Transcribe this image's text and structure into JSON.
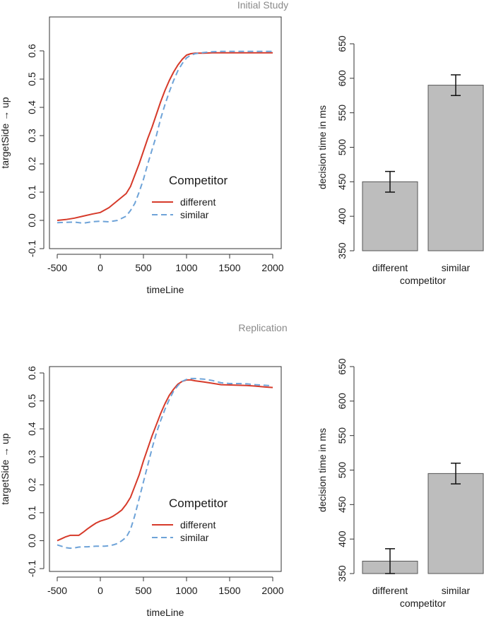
{
  "panels": [
    {
      "title": "Initial Study"
    },
    {
      "title": "Replication"
    }
  ],
  "line_labels": {
    "xlabel": "timeLine",
    "ylabel": "targetSide → up"
  },
  "legend": {
    "title": "Competitor",
    "items": [
      "different",
      "similar"
    ]
  },
  "bar_labels": {
    "xlabel": "competitor",
    "ylabel": "decision time in ms"
  },
  "colors": {
    "different": "#d63a2a",
    "similar": "#6ea3d8",
    "bar": "#bdbdbd"
  },
  "chart_data": [
    {
      "type": "line",
      "panel": "Initial Study",
      "xlabel": "timeLine",
      "ylabel": "targetSide → up",
      "xlim": [
        -500,
        2000
      ],
      "ylim": [
        -0.1,
        0.6
      ],
      "xticks": [
        -500,
        0,
        500,
        1000,
        1500,
        2000
      ],
      "yticks": [
        -0.1,
        0.0,
        0.1,
        0.2,
        0.3,
        0.4,
        0.5,
        0.6
      ],
      "ytick_labels": [
        "-0.1",
        "0.0",
        "0.1",
        "0.2",
        "0.3",
        "0.4",
        "0.5",
        "0.6"
      ],
      "legend_position": "center-right",
      "series": [
        {
          "name": "different",
          "style": "solid",
          "x": [
            -500,
            -400,
            -300,
            -200,
            -100,
            0,
            100,
            200,
            300,
            350,
            400,
            450,
            500,
            550,
            600,
            650,
            700,
            750,
            800,
            850,
            900,
            950,
            1000,
            1050,
            1100,
            1200,
            1300,
            1400,
            1500,
            1600,
            1700,
            1800,
            1900,
            2000
          ],
          "y": [
            0.0,
            0.003,
            0.008,
            0.015,
            0.022,
            0.028,
            0.045,
            0.07,
            0.095,
            0.12,
            0.16,
            0.2,
            0.245,
            0.29,
            0.33,
            0.375,
            0.42,
            0.46,
            0.495,
            0.525,
            0.55,
            0.57,
            0.585,
            0.59,
            0.592,
            0.592,
            0.593,
            0.593,
            0.593,
            0.593,
            0.593,
            0.593,
            0.593,
            0.593
          ]
        },
        {
          "name": "similar",
          "style": "dashed",
          "x": [
            -500,
            -400,
            -300,
            -200,
            -100,
            0,
            100,
            200,
            300,
            350,
            400,
            450,
            500,
            550,
            600,
            650,
            700,
            750,
            800,
            850,
            900,
            950,
            1000,
            1050,
            1100,
            1200,
            1300,
            1400,
            1500,
            1600,
            1700,
            1800,
            1900,
            2000
          ],
          "y": [
            -0.008,
            -0.007,
            -0.006,
            -0.01,
            -0.005,
            -0.003,
            -0.005,
            0.0,
            0.015,
            0.035,
            0.06,
            0.1,
            0.145,
            0.2,
            0.25,
            0.3,
            0.36,
            0.41,
            0.455,
            0.495,
            0.53,
            0.555,
            0.575,
            0.585,
            0.59,
            0.594,
            0.597,
            0.598,
            0.598,
            0.598,
            0.598,
            0.598,
            0.598,
            0.598
          ]
        }
      ]
    },
    {
      "type": "bar",
      "panel": "Initial Study",
      "xlabel": "competitor",
      "ylabel": "decision time in ms",
      "categories": [
        "different",
        "similar"
      ],
      "values": [
        450,
        590
      ],
      "errors": [
        15,
        15
      ],
      "ylim": [
        350,
        650
      ],
      "yticks": [
        350,
        400,
        450,
        500,
        550,
        600,
        650
      ]
    },
    {
      "type": "line",
      "panel": "Replication",
      "xlabel": "timeLine",
      "ylabel": "targetSide → up",
      "xlim": [
        -500,
        2000
      ],
      "ylim": [
        -0.1,
        0.6
      ],
      "xticks": [
        -500,
        0,
        500,
        1000,
        1500,
        2000
      ],
      "yticks": [
        -0.1,
        0.0,
        0.1,
        0.2,
        0.3,
        0.4,
        0.5,
        0.6
      ],
      "ytick_labels": [
        "-0.1",
        "0.0",
        "0.1",
        "0.2",
        "0.3",
        "0.4",
        "0.5",
        "0.6"
      ],
      "legend_position": "center-right",
      "series": [
        {
          "name": "different",
          "style": "solid",
          "x": [
            -500,
            -450,
            -400,
            -350,
            -300,
            -250,
            -200,
            -150,
            -100,
            -50,
            0,
            50,
            100,
            150,
            200,
            250,
            300,
            350,
            400,
            450,
            500,
            550,
            600,
            650,
            700,
            750,
            800,
            850,
            900,
            950,
            1000,
            1050,
            1100,
            1200,
            1300,
            1400,
            1500,
            1600,
            1700,
            1800,
            1900,
            2000
          ],
          "y": [
            0.0,
            0.007,
            0.014,
            0.019,
            0.019,
            0.019,
            0.03,
            0.042,
            0.053,
            0.063,
            0.07,
            0.075,
            0.08,
            0.088,
            0.098,
            0.11,
            0.13,
            0.155,
            0.195,
            0.235,
            0.285,
            0.33,
            0.375,
            0.415,
            0.455,
            0.49,
            0.52,
            0.542,
            0.56,
            0.57,
            0.575,
            0.575,
            0.572,
            0.568,
            0.563,
            0.558,
            0.557,
            0.556,
            0.555,
            0.553,
            0.55,
            0.548
          ]
        },
        {
          "name": "similar",
          "style": "dashed",
          "x": [
            -500,
            -450,
            -400,
            -350,
            -300,
            -250,
            -200,
            -150,
            -100,
            -50,
            0,
            50,
            100,
            150,
            200,
            250,
            300,
            350,
            400,
            450,
            500,
            550,
            600,
            650,
            700,
            750,
            800,
            850,
            900,
            950,
            1000,
            1050,
            1100,
            1200,
            1300,
            1400,
            1500,
            1600,
            1700,
            1800,
            1900,
            2000
          ],
          "y": [
            -0.015,
            -0.02,
            -0.025,
            -0.027,
            -0.026,
            -0.023,
            -0.022,
            -0.022,
            -0.021,
            -0.02,
            -0.02,
            -0.02,
            -0.018,
            -0.015,
            -0.01,
            0.0,
            0.012,
            0.04,
            0.09,
            0.15,
            0.21,
            0.27,
            0.33,
            0.385,
            0.43,
            0.47,
            0.505,
            0.535,
            0.555,
            0.57,
            0.577,
            0.58,
            0.58,
            0.578,
            0.573,
            0.565,
            0.562,
            0.562,
            0.561,
            0.558,
            0.556,
            0.554
          ]
        }
      ]
    },
    {
      "type": "bar",
      "panel": "Replication",
      "xlabel": "competitor",
      "ylabel": "decision time in ms",
      "categories": [
        "different",
        "similar"
      ],
      "values": [
        368,
        495
      ],
      "errors": [
        18,
        15
      ],
      "ylim": [
        350,
        650
      ],
      "yticks": [
        350,
        400,
        450,
        500,
        550,
        600,
        650
      ]
    }
  ]
}
